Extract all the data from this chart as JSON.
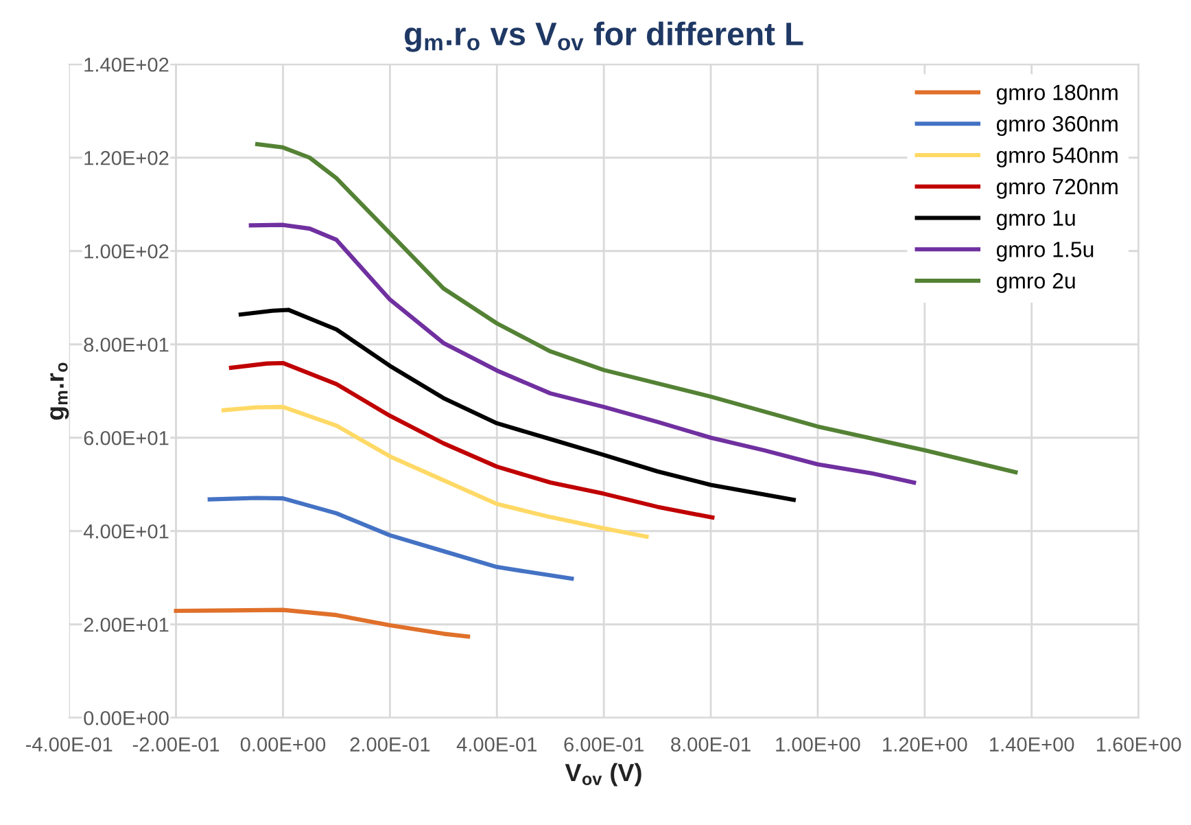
{
  "chart_data": {
    "type": "line",
    "title": "g$_{m}$.r$_{o}$ vs V$_{ov}$ for different L",
    "xlabel": "V$_{ov}$ (V)",
    "ylabel": "g$_{m}$.r$_{o}$",
    "xlim": [
      -0.4,
      1.6
    ],
    "ylim": [
      0,
      140
    ],
    "xticks": [
      {
        "value": -0.4,
        "label": "-4.00E-01"
      },
      {
        "value": -0.2,
        "label": "-2.00E-01"
      },
      {
        "value": 0,
        "label": "0.00E+00"
      },
      {
        "value": 0.2,
        "label": "2.00E-01"
      },
      {
        "value": 0.4,
        "label": "4.00E-01"
      },
      {
        "value": 0.6,
        "label": "6.00E-01"
      },
      {
        "value": 0.8,
        "label": "8.00E-01"
      },
      {
        "value": 1.0,
        "label": "1.00E+00"
      },
      {
        "value": 1.2,
        "label": "1.20E+00"
      },
      {
        "value": 1.4,
        "label": "1.40E+00"
      },
      {
        "value": 1.6,
        "label": "1.60E+00"
      }
    ],
    "yticks": [
      {
        "value": 0,
        "label": "0.00E+00"
      },
      {
        "value": 20,
        "label": "2.00E+01"
      },
      {
        "value": 40,
        "label": "4.00E+01"
      },
      {
        "value": 60,
        "label": "6.00E+01"
      },
      {
        "value": 80,
        "label": "8.00E+01"
      },
      {
        "value": 100,
        "label": "1.00E+02"
      },
      {
        "value": 120,
        "label": "1.20E+02"
      },
      {
        "value": 140,
        "label": "1.40E+02"
      }
    ],
    "grid": true,
    "legend": "top right",
    "marker": "none",
    "line_style": "solid",
    "series": [
      {
        "name": "gmro 180nm",
        "color": "#e0702a",
        "x": [
          -0.2,
          -0.1,
          0,
          0.1,
          0.2,
          0.3,
          0.346
        ],
        "values": [
          22.9,
          23.0,
          23.1,
          22.0,
          19.8,
          18.0,
          17.4
        ]
      },
      {
        "name": "gmro 360nm",
        "color": "#4472c4",
        "x": [
          -0.137,
          -0.05,
          0,
          0.1,
          0.2,
          0.3,
          0.4,
          0.54
        ],
        "values": [
          46.8,
          47.1,
          47.0,
          43.8,
          39.1,
          35.7,
          32.3,
          29.8
        ]
      },
      {
        "name": "gmro 540nm",
        "color": "#ffd966",
        "x": [
          -0.111,
          -0.05,
          0,
          0.1,
          0.2,
          0.3,
          0.4,
          0.5,
          0.6,
          0.68
        ],
        "values": [
          65.9,
          66.5,
          66.6,
          62.6,
          56.0,
          50.9,
          45.8,
          43.0,
          40.6,
          38.8
        ]
      },
      {
        "name": "gmro 720nm",
        "color": "#c00000",
        "x": [
          -0.097,
          -0.03,
          0,
          0.1,
          0.2,
          0.3,
          0.4,
          0.5,
          0.6,
          0.7,
          0.803
        ],
        "values": [
          75.0,
          75.9,
          76.0,
          71.5,
          64.7,
          58.8,
          53.8,
          50.4,
          48.0,
          45.2,
          42.9
        ]
      },
      {
        "name": "gmro 1u",
        "color": "#000000",
        "x": [
          -0.079,
          -0.02,
          0.01,
          0.1,
          0.2,
          0.3,
          0.4,
          0.5,
          0.6,
          0.7,
          0.8,
          0.955
        ],
        "values": [
          86.4,
          87.2,
          87.4,
          83.2,
          75.4,
          68.5,
          63.1,
          59.7,
          56.3,
          52.8,
          49.9,
          46.7
        ]
      },
      {
        "name": "gmro 1.5u",
        "color": "#7030a0",
        "x": [
          -0.06,
          0,
          0.05,
          0.1,
          0.2,
          0.3,
          0.4,
          0.5,
          0.6,
          0.7,
          0.8,
          0.9,
          1.0,
          1.1,
          1.18
        ],
        "values": [
          105.5,
          105.6,
          104.8,
          102.4,
          89.6,
          80.3,
          74.4,
          69.5,
          66.6,
          63.4,
          60.0,
          57.3,
          54.3,
          52.4,
          50.4
        ]
      },
      {
        "name": "gmro 2u",
        "color": "#548235",
        "x": [
          -0.048,
          0,
          0.05,
          0.1,
          0.2,
          0.3,
          0.4,
          0.5,
          0.6,
          0.8,
          1.0,
          1.2,
          1.37
        ],
        "values": [
          122.9,
          122.2,
          120.0,
          115.6,
          103.8,
          92.0,
          84.5,
          78.5,
          74.5,
          68.8,
          62.4,
          57.3,
          52.6
        ]
      }
    ]
  }
}
